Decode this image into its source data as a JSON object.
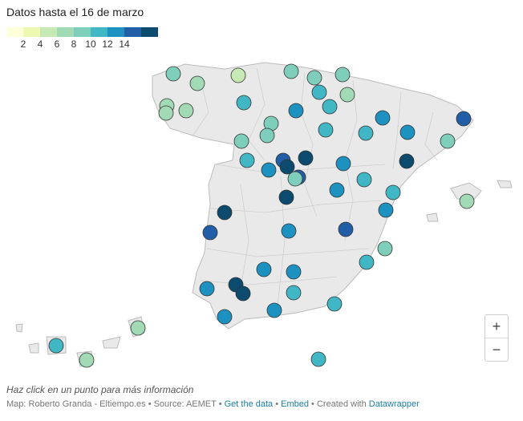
{
  "header": {
    "title": "Datos hasta el 16 de marzo"
  },
  "legend": {
    "colors": [
      "#ffffd9",
      "#edf8b1",
      "#c7e9b4",
      "#a1dab4",
      "#7fcdbb",
      "#41b6c4",
      "#1d91c0",
      "#225ea8",
      "#0c4a6e"
    ],
    "ticks": [
      "2",
      "4",
      "6",
      "8",
      "10",
      "12",
      "14"
    ]
  },
  "map": {
    "landmass": "Spain",
    "fill_color": "#e9e9e9",
    "stroke_color": "#bbbbbb"
  },
  "zoom": {
    "in_label": "+",
    "out_label": "−"
  },
  "hint": "Haz click en un punto para más información",
  "footer": {
    "prefix": "Map: Roberto Granda - Eltiempo.es • Source: AEMET • ",
    "get_data": "Get the data",
    "sep1": " • ",
    "embed": "Embed",
    "sep2": " • Created with ",
    "datawrapper": "Datawrapper"
  }
}
